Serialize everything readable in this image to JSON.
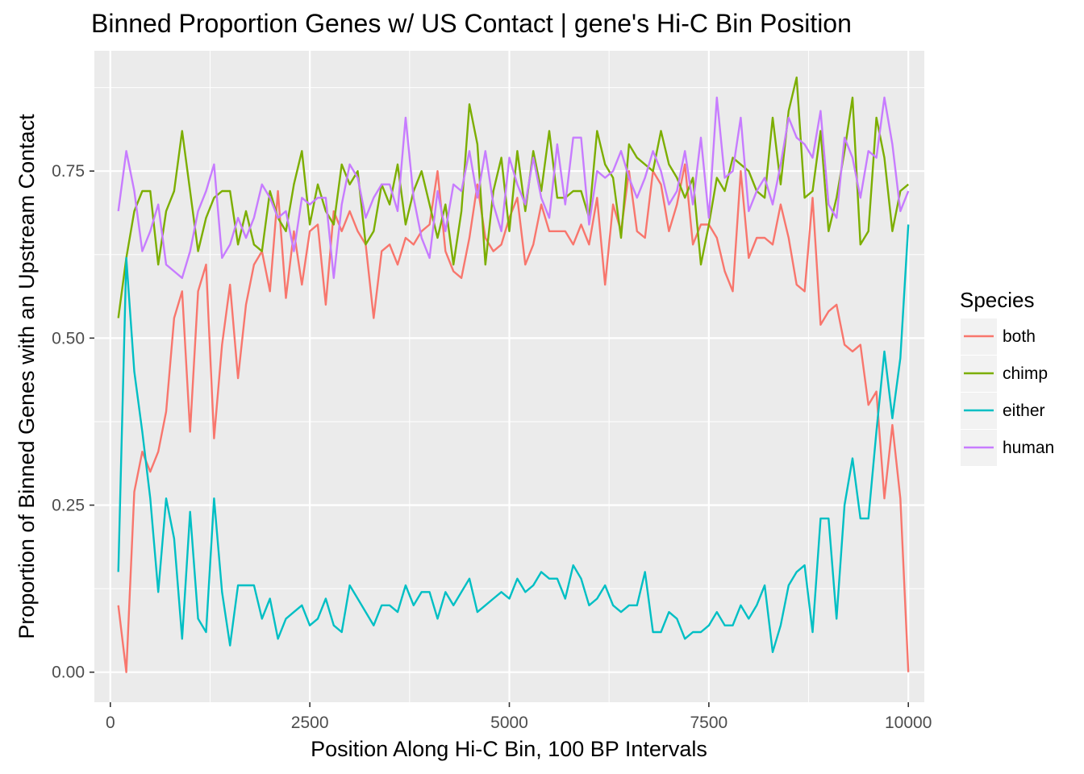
{
  "chart_data": {
    "type": "line",
    "title": "Binned Proportion Genes w/ US Contact | gene's Hi-C Bin Position",
    "xlabel": "Position Along Hi-C Bin, 100 BP Intervals",
    "ylabel": "Proportion of Binned Genes with an Upstream Contact",
    "xlim": [
      -200,
      10200
    ],
    "ylim": [
      -0.045,
      0.93
    ],
    "x_ticks": [
      0,
      2500,
      5000,
      7500,
      10000
    ],
    "x_tick_labels": [
      "0",
      "2500",
      "5000",
      "7500",
      "10000"
    ],
    "y_ticks": [
      0,
      0.25,
      0.5,
      0.75
    ],
    "y_tick_labels": [
      "0.00",
      "0.25",
      "0.50",
      "0.75"
    ],
    "grid": true,
    "legend": {
      "title": "Species",
      "position": "right"
    },
    "x": [
      100,
      200,
      300,
      400,
      500,
      600,
      700,
      800,
      900,
      1000,
      1100,
      1200,
      1300,
      1400,
      1500,
      1600,
      1700,
      1800,
      1900,
      2000,
      2100,
      2200,
      2300,
      2400,
      2500,
      2600,
      2700,
      2800,
      2900,
      3000,
      3100,
      3200,
      3300,
      3400,
      3500,
      3600,
      3700,
      3800,
      3900,
      4000,
      4100,
      4200,
      4300,
      4400,
      4500,
      4600,
      4700,
      4800,
      4900,
      5000,
      5100,
      5200,
      5300,
      5400,
      5500,
      5600,
      5700,
      5800,
      5900,
      6000,
      6100,
      6200,
      6300,
      6400,
      6500,
      6600,
      6700,
      6800,
      6900,
      7000,
      7100,
      7200,
      7300,
      7400,
      7500,
      7600,
      7700,
      7800,
      7900,
      8000,
      8100,
      8200,
      8300,
      8400,
      8500,
      8600,
      8700,
      8800,
      8900,
      9000,
      9100,
      9200,
      9300,
      9400,
      9500,
      9600,
      9700,
      9800,
      9900,
      10000
    ],
    "series": [
      {
        "name": "both",
        "color": "#F8766D",
        "values": [
          0.1,
          0.0,
          0.27,
          0.33,
          0.3,
          0.33,
          0.39,
          0.53,
          0.57,
          0.36,
          0.57,
          0.61,
          0.35,
          0.49,
          0.58,
          0.44,
          0.55,
          0.61,
          0.63,
          0.57,
          0.72,
          0.56,
          0.66,
          0.58,
          0.66,
          0.67,
          0.55,
          0.69,
          0.66,
          0.69,
          0.66,
          0.64,
          0.53,
          0.63,
          0.64,
          0.61,
          0.65,
          0.64,
          0.66,
          0.67,
          0.75,
          0.63,
          0.6,
          0.59,
          0.65,
          0.73,
          0.65,
          0.63,
          0.64,
          0.68,
          0.71,
          0.61,
          0.64,
          0.7,
          0.66,
          0.66,
          0.66,
          0.64,
          0.67,
          0.64,
          0.71,
          0.58,
          0.7,
          0.66,
          0.75,
          0.66,
          0.65,
          0.75,
          0.73,
          0.66,
          0.7,
          0.76,
          0.64,
          0.67,
          0.67,
          0.65,
          0.6,
          0.57,
          0.75,
          0.62,
          0.65,
          0.65,
          0.64,
          0.7,
          0.65,
          0.58,
          0.57,
          0.71,
          0.52,
          0.54,
          0.55,
          0.49,
          0.48,
          0.49,
          0.4,
          0.42,
          0.26,
          0.37,
          0.26,
          0.0
        ]
      },
      {
        "name": "chimp",
        "color": "#7CAE00",
        "values": [
          0.53,
          0.62,
          0.69,
          0.72,
          0.72,
          0.61,
          0.69,
          0.72,
          0.81,
          0.72,
          0.63,
          0.68,
          0.71,
          0.72,
          0.72,
          0.64,
          0.69,
          0.64,
          0.63,
          0.72,
          0.68,
          0.66,
          0.73,
          0.78,
          0.67,
          0.73,
          0.69,
          0.67,
          0.76,
          0.73,
          0.75,
          0.64,
          0.66,
          0.73,
          0.7,
          0.76,
          0.67,
          0.72,
          0.75,
          0.7,
          0.65,
          0.7,
          0.61,
          0.69,
          0.85,
          0.79,
          0.61,
          0.72,
          0.77,
          0.66,
          0.78,
          0.69,
          0.78,
          0.72,
          0.81,
          0.71,
          0.71,
          0.72,
          0.72,
          0.68,
          0.81,
          0.76,
          0.74,
          0.65,
          0.79,
          0.77,
          0.76,
          0.75,
          0.81,
          0.76,
          0.74,
          0.71,
          0.74,
          0.61,
          0.67,
          0.74,
          0.72,
          0.77,
          0.76,
          0.75,
          0.72,
          0.71,
          0.83,
          0.73,
          0.84,
          0.89,
          0.71,
          0.72,
          0.81,
          0.66,
          0.71,
          0.78,
          0.86,
          0.64,
          0.66,
          0.83,
          0.77,
          0.66,
          0.72,
          0.73
        ]
      },
      {
        "name": "either",
        "color": "#00BFC4",
        "values": [
          0.15,
          0.62,
          0.45,
          0.36,
          0.26,
          0.12,
          0.26,
          0.2,
          0.05,
          0.24,
          0.08,
          0.06,
          0.26,
          0.12,
          0.04,
          0.13,
          0.13,
          0.13,
          0.08,
          0.11,
          0.05,
          0.08,
          0.09,
          0.1,
          0.07,
          0.08,
          0.11,
          0.07,
          0.06,
          0.13,
          0.11,
          0.09,
          0.07,
          0.1,
          0.1,
          0.09,
          0.13,
          0.1,
          0.12,
          0.12,
          0.08,
          0.12,
          0.1,
          0.12,
          0.14,
          0.09,
          0.1,
          0.11,
          0.12,
          0.11,
          0.14,
          0.12,
          0.13,
          0.15,
          0.14,
          0.14,
          0.11,
          0.16,
          0.14,
          0.1,
          0.11,
          0.13,
          0.1,
          0.09,
          0.1,
          0.1,
          0.15,
          0.06,
          0.06,
          0.09,
          0.08,
          0.05,
          0.06,
          0.06,
          0.07,
          0.09,
          0.07,
          0.07,
          0.1,
          0.08,
          0.1,
          0.13,
          0.03,
          0.07,
          0.13,
          0.15,
          0.16,
          0.06,
          0.23,
          0.23,
          0.08,
          0.25,
          0.32,
          0.23,
          0.23,
          0.36,
          0.48,
          0.38,
          0.47,
          0.67
        ]
      },
      {
        "name": "human",
        "color": "#C77CFF",
        "values": [
          0.69,
          0.78,
          0.72,
          0.63,
          0.66,
          0.7,
          0.61,
          0.6,
          0.59,
          0.63,
          0.69,
          0.72,
          0.76,
          0.62,
          0.64,
          0.68,
          0.65,
          0.68,
          0.73,
          0.71,
          0.68,
          0.69,
          0.63,
          0.71,
          0.7,
          0.71,
          0.71,
          0.59,
          0.7,
          0.76,
          0.74,
          0.68,
          0.71,
          0.73,
          0.73,
          0.69,
          0.83,
          0.71,
          0.65,
          0.62,
          0.72,
          0.66,
          0.73,
          0.72,
          0.78,
          0.71,
          0.78,
          0.7,
          0.66,
          0.77,
          0.73,
          0.7,
          0.77,
          0.71,
          0.68,
          0.79,
          0.7,
          0.8,
          0.8,
          0.67,
          0.75,
          0.74,
          0.75,
          0.78,
          0.74,
          0.71,
          0.74,
          0.78,
          0.75,
          0.7,
          0.72,
          0.78,
          0.7,
          0.8,
          0.68,
          0.86,
          0.74,
          0.75,
          0.83,
          0.69,
          0.72,
          0.74,
          0.7,
          0.76,
          0.83,
          0.8,
          0.79,
          0.77,
          0.84,
          0.7,
          0.68,
          0.8,
          0.77,
          0.71,
          0.78,
          0.77,
          0.86,
          0.79,
          0.69,
          0.72
        ]
      }
    ]
  }
}
